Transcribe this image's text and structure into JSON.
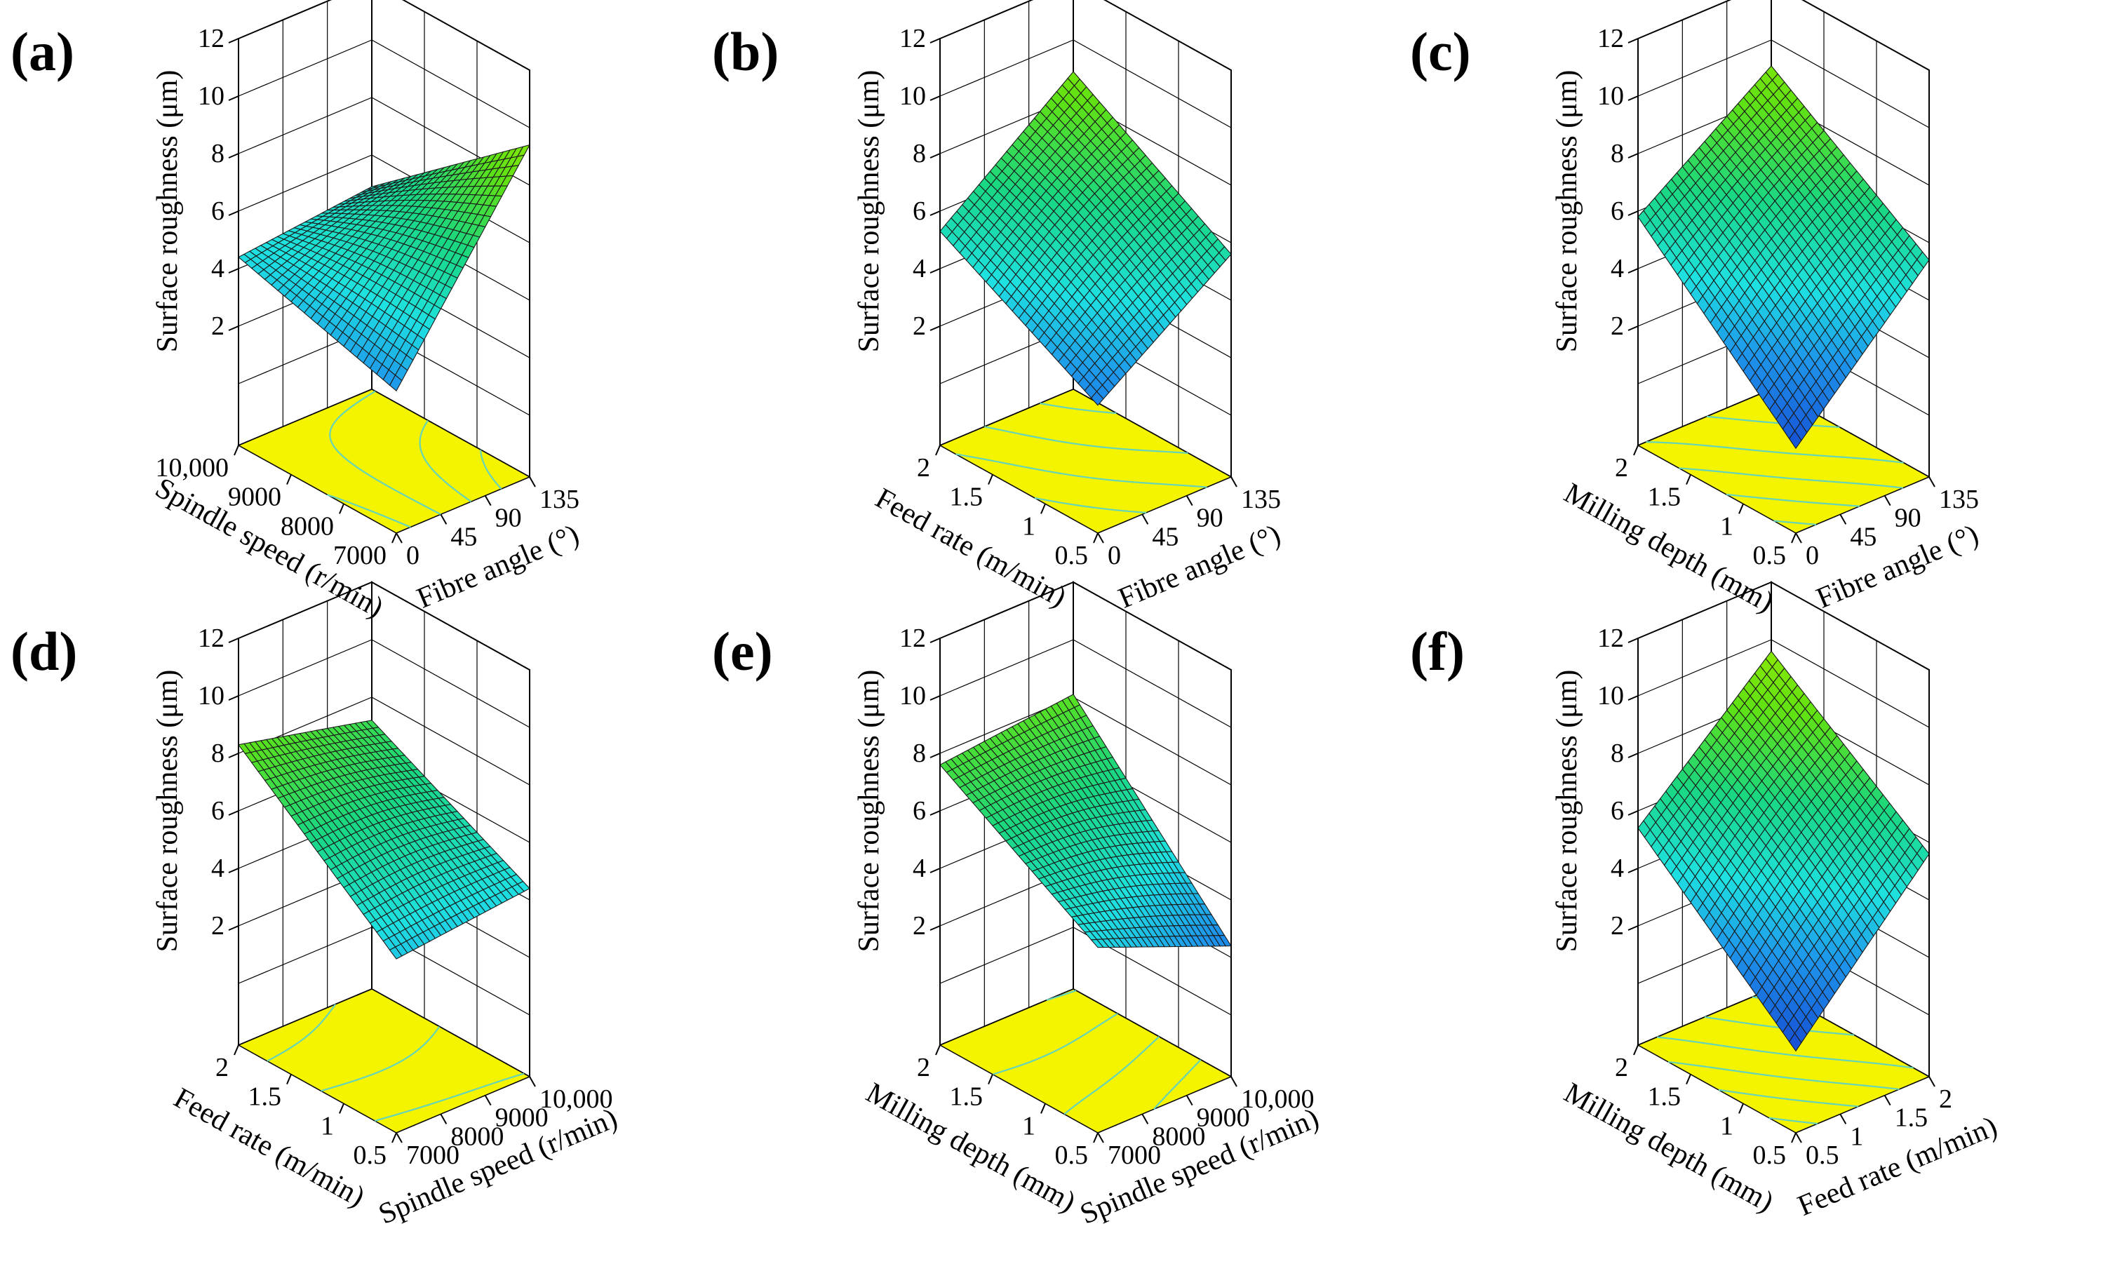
{
  "chart_data": [
    {
      "type": "surface",
      "panel": "(a)",
      "zlabel": "Surface roughness (μm)",
      "zticks": [
        "2",
        "4",
        "6",
        "8",
        "10",
        "12"
      ],
      "zlim": [
        0,
        12
      ],
      "left_axis": {
        "label": "Spindle speed (r/min)",
        "ticks": [
          "7000",
          "8000",
          "9000",
          "10,000"
        ],
        "range": [
          7000,
          10000
        ]
      },
      "right_axis": {
        "label": "Fibre angle (°)",
        "ticks": [
          "0",
          "45",
          "90",
          "135"
        ],
        "range": [
          0,
          135
        ]
      },
      "corners": {
        "front": 2.8,
        "left": 4.4,
        "right": 9.4,
        "back": 4.9
      }
    },
    {
      "type": "surface",
      "panel": "(b)",
      "zlabel": "Surface roughness (μm)",
      "zticks": [
        "2",
        "4",
        "6",
        "8",
        "10",
        "12"
      ],
      "zlim": [
        0,
        12
      ],
      "left_axis": {
        "label": "Feed rate (m/min)",
        "ticks": [
          "0.5",
          "1",
          "1.5",
          "2"
        ],
        "range": [
          0.5,
          2
        ]
      },
      "right_axis": {
        "label": "Fibre angle (°)",
        "ticks": [
          "0",
          "45",
          "90",
          "135"
        ],
        "range": [
          0,
          135
        ]
      },
      "corners": {
        "front": 2.3,
        "left": 5.3,
        "right": 5.6,
        "back": 8.9
      }
    },
    {
      "type": "surface",
      "panel": "(c)",
      "zlabel": "Surface roughness (μm)",
      "zticks": [
        "2",
        "4",
        "6",
        "8",
        "10",
        "12"
      ],
      "zlim": [
        0,
        12
      ],
      "left_axis": {
        "label": "Milling depth (mm)",
        "ticks": [
          "0.5",
          "1",
          "1.5",
          "2"
        ],
        "range": [
          0.5,
          2
        ]
      },
      "right_axis": {
        "label": "Fibre angle (°)",
        "ticks": [
          "0",
          "45",
          "90",
          "135"
        ],
        "range": [
          0,
          135
        ]
      },
      "corners": {
        "front": 0.8,
        "left": 5.8,
        "right": 5.4,
        "back": 9.1
      }
    },
    {
      "type": "surface",
      "panel": "(d)",
      "zlabel": "Surface roughness (μm)",
      "zticks": [
        "2",
        "4",
        "6",
        "8",
        "10",
        "12"
      ],
      "zlim": [
        0,
        12
      ],
      "left_axis": {
        "label": "Feed rate (m/min)",
        "ticks": [
          "0.5",
          "1",
          "1.5",
          "2"
        ],
        "range": [
          0.5,
          2
        ]
      },
      "right_axis": {
        "label": "Spindle speed (r/min)",
        "ticks": [
          "7000",
          "8000",
          "9000",
          "10,000"
        ],
        "range": [
          7000,
          10000
        ]
      },
      "corners": {
        "front": 3.9,
        "left": 8.3,
        "right": 4.4,
        "back": 7.2
      }
    },
    {
      "type": "surface",
      "panel": "(e)",
      "zlabel": "Surface roughness (μm)",
      "zticks": [
        "2",
        "4",
        "6",
        "8",
        "10",
        "12"
      ],
      "zlim": [
        0,
        12
      ],
      "left_axis": {
        "label": "Milling depth (mm)",
        "ticks": [
          "0.5",
          "1",
          "1.5",
          "2"
        ],
        "range": [
          0.5,
          2
        ]
      },
      "right_axis": {
        "label": "Spindle speed (r/min)",
        "ticks": [
          "7000",
          "8000",
          "9000",
          "10,000"
        ],
        "range": [
          7000,
          10000
        ]
      },
      "corners": {
        "front": 4.3,
        "left": 7.6,
        "right": 2.4,
        "back": 8.1
      }
    },
    {
      "type": "surface",
      "panel": "(f)",
      "zlabel": "Surface roughness (μm)",
      "zticks": [
        "2",
        "4",
        "6",
        "8",
        "10",
        "12"
      ],
      "zlim": [
        0,
        12
      ],
      "left_axis": {
        "label": "Milling depth (mm)",
        "ticks": [
          "0.5",
          "1",
          "1.5",
          "2"
        ],
        "range": [
          0.5,
          2
        ]
      },
      "right_axis": {
        "label": "Feed rate (m/min)",
        "ticks": [
          "0.5",
          "1",
          "1.5",
          "2"
        ],
        "range": [
          0.5,
          2
        ]
      },
      "corners": {
        "front": 0.7,
        "left": 5.4,
        "right": 5.6,
        "back": 9.6
      }
    }
  ],
  "colors": {
    "floor": "#f4f400",
    "contour": "#66d4b8",
    "surface_low": "#2a6be8",
    "surface_mid": "#1ee8e0",
    "surface_high": "#62e000"
  }
}
